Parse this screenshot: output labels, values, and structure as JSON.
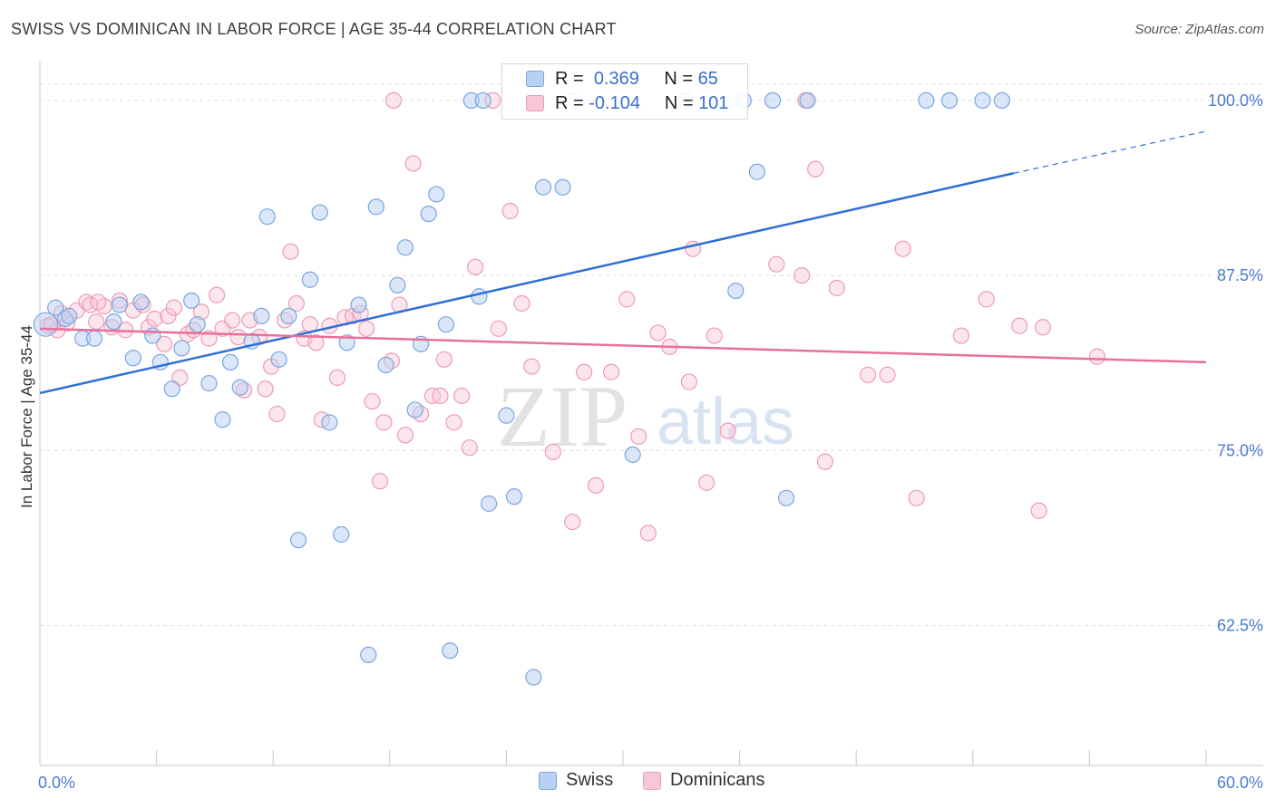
{
  "title": "SWISS VS DOMINICAN IN LABOR FORCE | AGE 35-44 CORRELATION CHART",
  "source": "Source: ZipAtlas.com",
  "watermark": {
    "zip": "ZIP",
    "atlas": "atlas"
  },
  "colors": {
    "swiss_fill": "#b8d0f2",
    "swiss_stroke": "#7aa6e0",
    "swiss_line": "#2e6fd6",
    "dom_fill": "#f8c7d7",
    "dom_stroke": "#ee9ab7",
    "dom_line": "#e8709a",
    "grid": "#dcdcdc",
    "tick_label": "#4a7bd0"
  },
  "legend": {
    "r_label": "R =",
    "n_label": "N =",
    "swiss": {
      "r": "0.369",
      "n": "65"
    },
    "dominicans": {
      "r": "-0.104",
      "n": "101"
    }
  },
  "chart_data": {
    "type": "scatter",
    "title": "SWISS VS DOMINICAN IN LABOR FORCE | AGE 35-44 CORRELATION CHART",
    "xlabel": "",
    "ylabel": "In Labor Force | Age 35-44",
    "xlim": [
      0,
      60
    ],
    "ylim": [
      52.5,
      102
    ],
    "x_tick_labels": [
      "0.0%",
      "60.0%"
    ],
    "y_ticks": [
      62.5,
      75.0,
      87.5,
      100.0
    ],
    "y_tick_labels": [
      "62.5%",
      "75.0%",
      "87.5%",
      "100.0%"
    ],
    "grid": true,
    "legend_position": "top-center",
    "series": [
      {
        "name": "Swiss",
        "trend": {
          "x": [
            0,
            50.1
          ],
          "y": [
            79.1,
            94.8
          ],
          "dashed_to": [
            60,
            97.8
          ]
        },
        "points": [
          [
            0.3,
            84.0
          ],
          [
            0.8,
            85.2
          ],
          [
            1.3,
            84.4
          ],
          [
            1.5,
            84.6
          ],
          [
            2.2,
            83.0
          ],
          [
            2.8,
            83.0
          ],
          [
            3.8,
            84.2
          ],
          [
            4.1,
            85.4
          ],
          [
            4.8,
            81.6
          ],
          [
            5.2,
            85.6
          ],
          [
            5.8,
            83.2
          ],
          [
            6.2,
            81.3
          ],
          [
            6.8,
            79.4
          ],
          [
            7.3,
            82.3
          ],
          [
            7.8,
            85.7
          ],
          [
            8.1,
            84.0
          ],
          [
            8.7,
            79.8
          ],
          [
            9.4,
            77.2
          ],
          [
            9.8,
            81.3
          ],
          [
            10.3,
            79.5
          ],
          [
            10.9,
            82.8
          ],
          [
            11.4,
            84.6
          ],
          [
            11.7,
            91.7
          ],
          [
            12.3,
            81.5
          ],
          [
            12.8,
            84.6
          ],
          [
            13.3,
            68.6
          ],
          [
            13.9,
            87.2
          ],
          [
            14.4,
            92.0
          ],
          [
            14.9,
            77.0
          ],
          [
            15.5,
            69.0
          ],
          [
            15.8,
            82.7
          ],
          [
            16.4,
            85.4
          ],
          [
            16.9,
            60.4
          ],
          [
            17.3,
            92.4
          ],
          [
            17.8,
            81.1
          ],
          [
            18.4,
            86.8
          ],
          [
            18.8,
            89.5
          ],
          [
            19.3,
            77.9
          ],
          [
            19.6,
            82.6
          ],
          [
            20.0,
            91.9
          ],
          [
            20.4,
            93.3
          ],
          [
            20.9,
            84.0
          ],
          [
            21.1,
            60.7
          ],
          [
            22.2,
            100.0
          ],
          [
            22.8,
            100.0
          ],
          [
            22.6,
            86.0
          ],
          [
            23.1,
            71.2
          ],
          [
            24.0,
            77.5
          ],
          [
            24.4,
            71.7
          ],
          [
            25.4,
            58.8
          ],
          [
            25.9,
            93.8
          ],
          [
            26.9,
            93.8
          ],
          [
            27.4,
            100.0
          ],
          [
            30.5,
            74.7
          ],
          [
            33.2,
            100.0
          ],
          [
            35.8,
            86.4
          ],
          [
            36.2,
            100.0
          ],
          [
            36.9,
            94.9
          ],
          [
            37.7,
            100.0
          ],
          [
            38.4,
            71.6
          ],
          [
            39.5,
            100.0
          ],
          [
            45.6,
            100.0
          ],
          [
            46.8,
            100.0
          ],
          [
            48.5,
            100.0
          ],
          [
            49.5,
            100.0
          ]
        ]
      },
      {
        "name": "Dominicans",
        "trend": {
          "x": [
            0,
            60
          ],
          "y": [
            83.7,
            81.3
          ]
        },
        "points": [
          [
            0.4,
            83.9
          ],
          [
            0.9,
            83.6
          ],
          [
            1.4,
            84.1
          ],
          [
            1.9,
            85.0
          ],
          [
            2.4,
            85.6
          ],
          [
            2.6,
            85.4
          ],
          [
            2.9,
            84.2
          ],
          [
            3.3,
            85.3
          ],
          [
            3.7,
            83.8
          ],
          [
            4.1,
            85.7
          ],
          [
            4.4,
            83.6
          ],
          [
            4.8,
            85.0
          ],
          [
            5.3,
            85.4
          ],
          [
            5.6,
            83.8
          ],
          [
            5.9,
            84.4
          ],
          [
            6.4,
            82.6
          ],
          [
            6.6,
            84.6
          ],
          [
            6.9,
            85.2
          ],
          [
            7.2,
            80.2
          ],
          [
            7.6,
            83.3
          ],
          [
            7.9,
            83.6
          ],
          [
            8.3,
            84.9
          ],
          [
            8.7,
            83.0
          ],
          [
            9.1,
            86.1
          ],
          [
            9.4,
            83.7
          ],
          [
            9.9,
            84.3
          ],
          [
            10.2,
            83.1
          ],
          [
            10.5,
            79.3
          ],
          [
            10.8,
            84.3
          ],
          [
            11.3,
            83.1
          ],
          [
            11.6,
            79.4
          ],
          [
            11.9,
            81.0
          ],
          [
            12.2,
            77.6
          ],
          [
            12.6,
            84.3
          ],
          [
            12.9,
            89.2
          ],
          [
            13.2,
            85.5
          ],
          [
            13.6,
            83.0
          ],
          [
            13.9,
            84.0
          ],
          [
            14.2,
            82.7
          ],
          [
            14.5,
            77.2
          ],
          [
            14.9,
            83.9
          ],
          [
            15.3,
            80.2
          ],
          [
            15.7,
            84.5
          ],
          [
            16.1,
            84.6
          ],
          [
            16.5,
            84.8
          ],
          [
            16.8,
            83.7
          ],
          [
            17.1,
            78.5
          ],
          [
            17.5,
            72.8
          ],
          [
            17.7,
            77.0
          ],
          [
            18.1,
            81.4
          ],
          [
            18.5,
            85.4
          ],
          [
            18.8,
            76.1
          ],
          [
            19.2,
            95.5
          ],
          [
            19.6,
            77.6
          ],
          [
            20.2,
            78.9
          ],
          [
            20.6,
            78.9
          ],
          [
            20.8,
            81.5
          ],
          [
            21.3,
            77.0
          ],
          [
            21.7,
            78.9
          ],
          [
            22.1,
            75.2
          ],
          [
            22.4,
            88.1
          ],
          [
            23.3,
            100.0
          ],
          [
            23.6,
            83.7
          ],
          [
            24.2,
            92.1
          ],
          [
            24.8,
            85.5
          ],
          [
            25.3,
            81.0
          ],
          [
            26.4,
            74.9
          ],
          [
            27.4,
            69.9
          ],
          [
            28.0,
            80.6
          ],
          [
            28.6,
            72.5
          ],
          [
            29.4,
            80.6
          ],
          [
            30.2,
            85.8
          ],
          [
            30.8,
            76.0
          ],
          [
            31.3,
            69.1
          ],
          [
            31.8,
            83.4
          ],
          [
            32.4,
            82.4
          ],
          [
            33.4,
            79.9
          ],
          [
            33.6,
            89.4
          ],
          [
            34.3,
            72.7
          ],
          [
            34.7,
            83.2
          ],
          [
            35.4,
            76.4
          ],
          [
            37.9,
            88.3
          ],
          [
            39.2,
            87.5
          ],
          [
            39.4,
            100.0
          ],
          [
            39.9,
            95.1
          ],
          [
            40.4,
            74.2
          ],
          [
            41.0,
            86.6
          ],
          [
            42.6,
            80.4
          ],
          [
            43.6,
            80.4
          ],
          [
            44.4,
            89.4
          ],
          [
            45.1,
            71.6
          ],
          [
            47.4,
            83.2
          ],
          [
            48.7,
            85.8
          ],
          [
            50.4,
            83.9
          ],
          [
            51.4,
            70.7
          ],
          [
            51.6,
            83.8
          ],
          [
            54.4,
            81.7
          ],
          [
            0.6,
            84.0
          ],
          [
            1.1,
            84.8
          ],
          [
            3.0,
            85.6
          ],
          [
            18.2,
            100.0
          ]
        ]
      }
    ]
  },
  "bottom_legend": {
    "swiss": "Swiss",
    "dominicans": "Dominicans"
  }
}
